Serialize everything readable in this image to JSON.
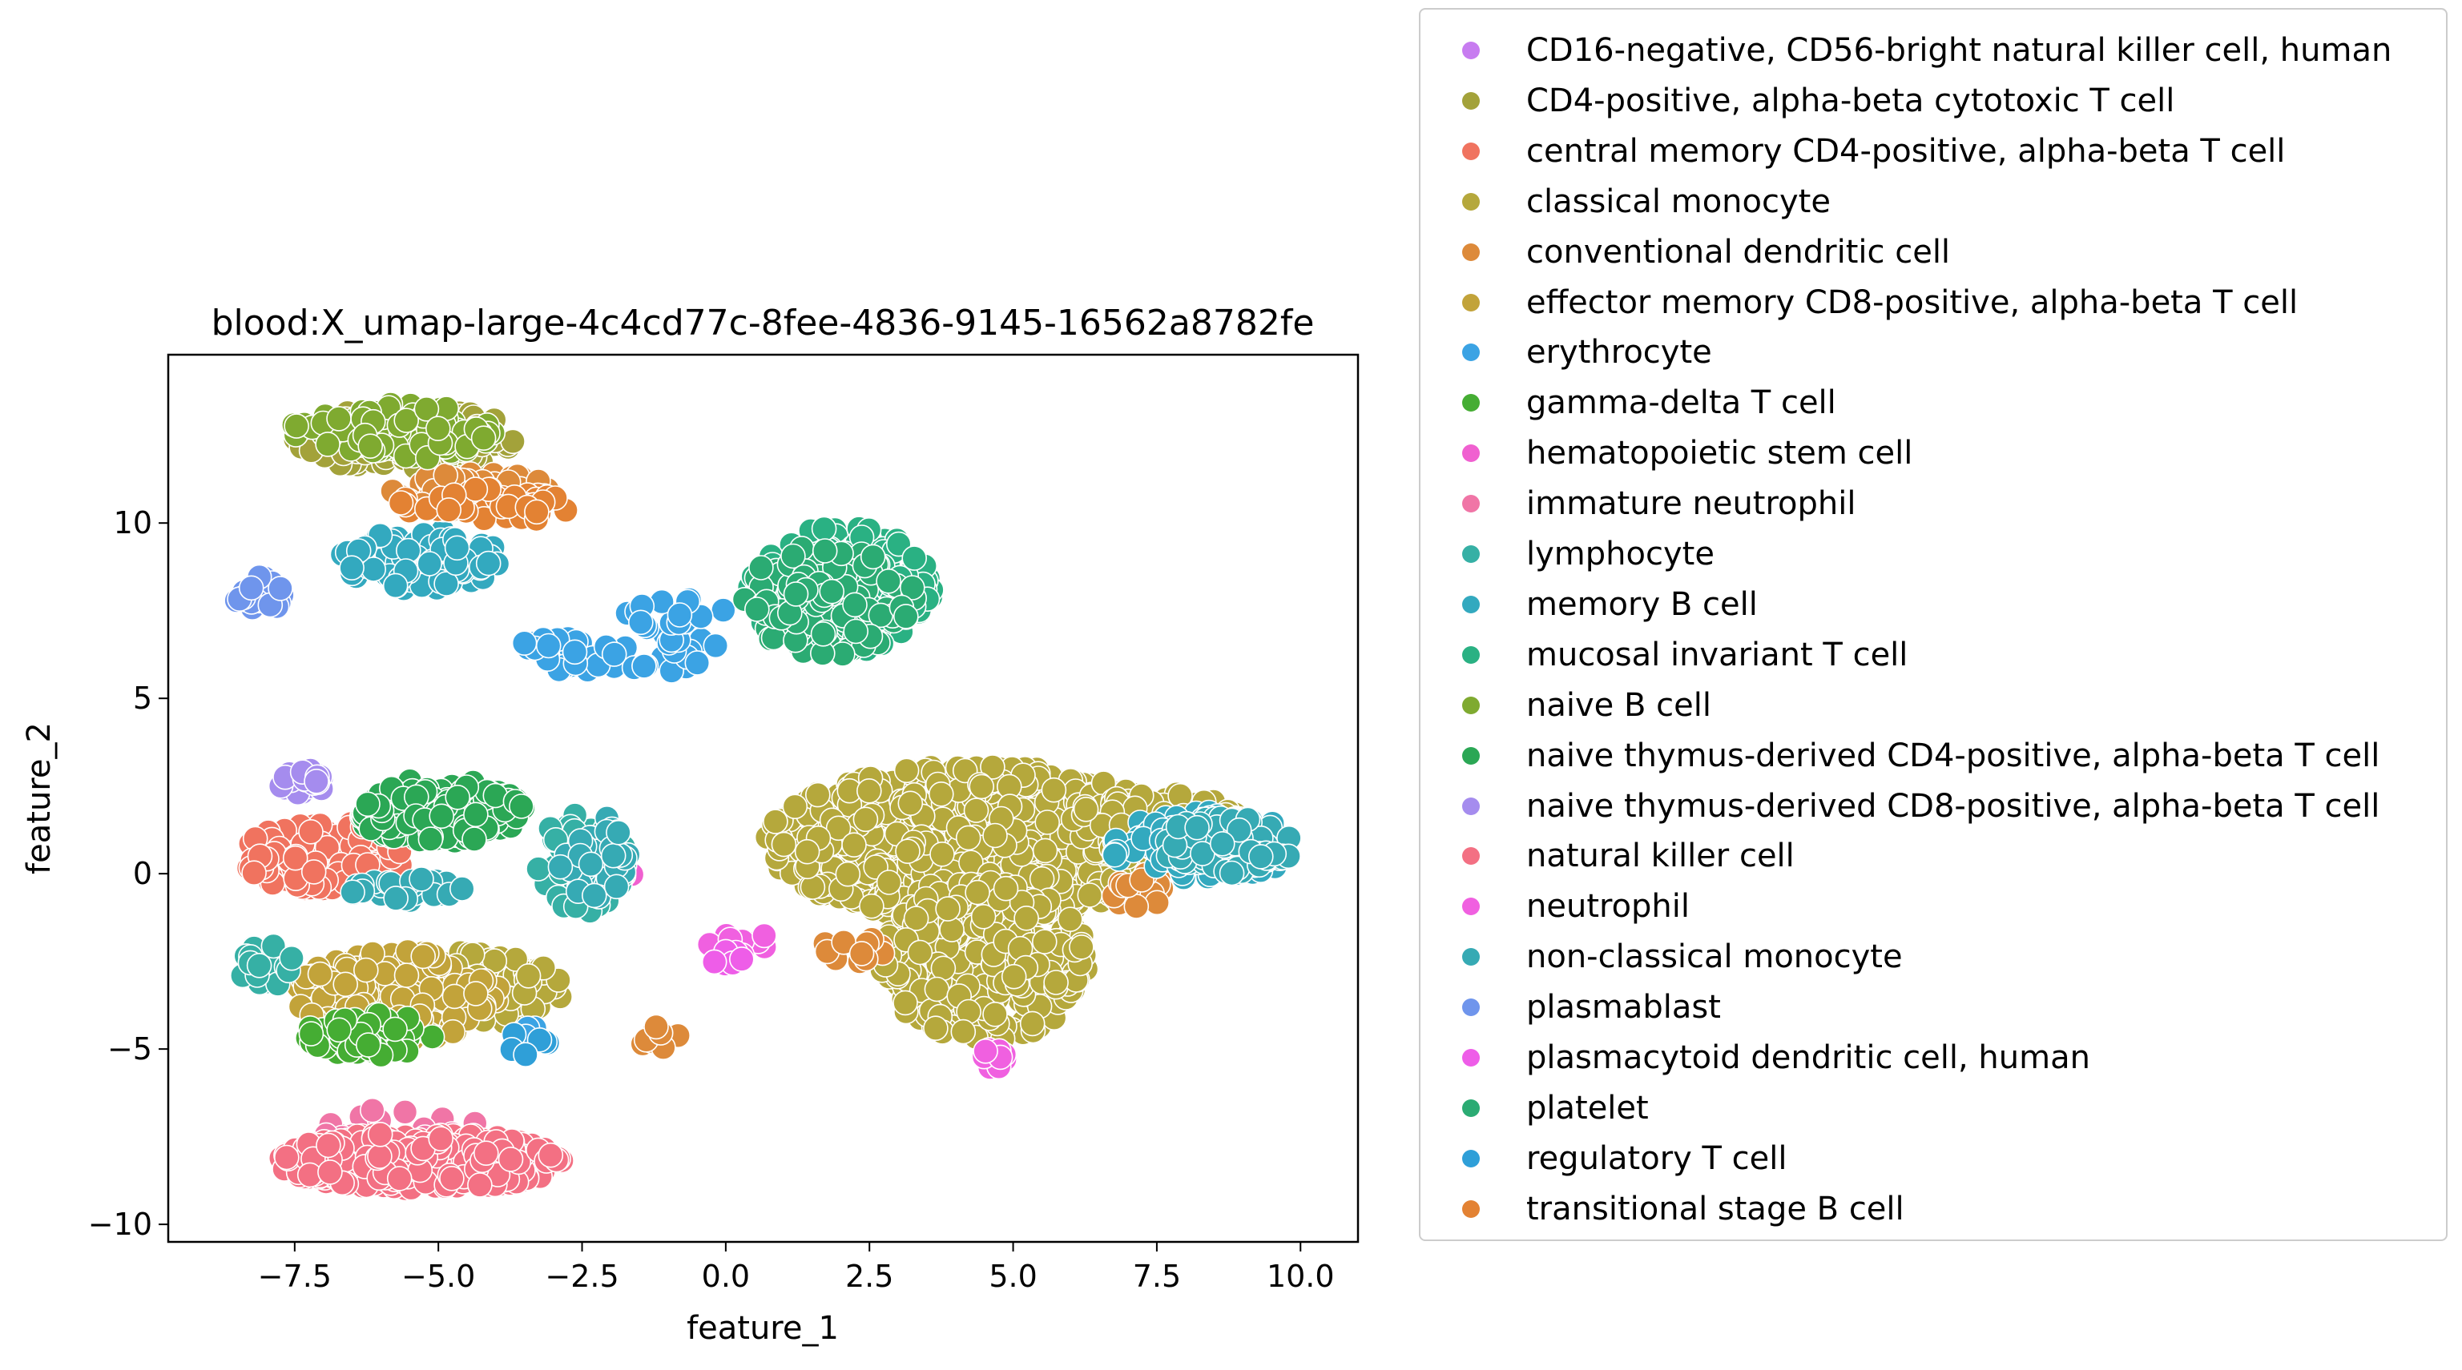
{
  "chart_data": {
    "type": "scatter",
    "title": "blood:X_umap-large-4c4cd77c-8fee-4836-9145-16562a8782fe",
    "xlabel": "feature_1",
    "ylabel": "feature_2",
    "xlim": [
      -9.7,
      11.0
    ],
    "ylim": [
      -10.5,
      14.8
    ],
    "xticks": [
      -7.5,
      -5.0,
      -2.5,
      0.0,
      2.5,
      5.0,
      7.5,
      10.0
    ],
    "xtick_labels": [
      "−7.5",
      "−5.0",
      "−2.5",
      "0.0",
      "2.5",
      "5.0",
      "7.5",
      "10.0"
    ],
    "yticks": [
      -10,
      -5,
      0,
      5,
      10
    ],
    "ytick_labels": [
      "−10",
      "−5",
      "0",
      "5",
      "10"
    ],
    "grid": false,
    "legend_position": "outside-right",
    "series": [
      {
        "name": "CD16-negative, CD56-bright natural killer cell, human",
        "color": "#c77cf0",
        "clusters": [
          {
            "cx": -6.3,
            "cy": -4.6,
            "rx": 0.5,
            "ry": 0.4,
            "n": 30
          }
        ]
      },
      {
        "name": "CD4-positive, alpha-beta cytotoxic T cell",
        "color": "#a3a23a",
        "clusters": [
          {
            "cx": -5.5,
            "cy": 12.4,
            "rx": 2.0,
            "ry": 0.9,
            "n": 140
          }
        ]
      },
      {
        "name": "central memory CD4-positive, alpha-beta T cell",
        "color": "#f0735f",
        "clusters": [
          {
            "cx": -7.0,
            "cy": 0.5,
            "rx": 1.4,
            "ry": 1.0,
            "n": 160
          }
        ]
      },
      {
        "name": "classical monocyte",
        "color": "#b5a83c",
        "clusters": [
          {
            "cx": 4.3,
            "cy": 0.9,
            "rx": 3.6,
            "ry": 2.2,
            "n": 700
          },
          {
            "cx": 4.5,
            "cy": -2.5,
            "rx": 1.8,
            "ry": 2.3,
            "n": 300
          },
          {
            "cx": 7.5,
            "cy": 1.3,
            "rx": 1.6,
            "ry": 1.0,
            "n": 120
          },
          {
            "cx": -4.8,
            "cy": -3.3,
            "rx": 2.0,
            "ry": 1.1,
            "n": 200
          }
        ]
      },
      {
        "name": "conventional dendritic cell",
        "color": "#dd8a3a",
        "clusters": [
          {
            "cx": -4.4,
            "cy": 10.9,
            "rx": 1.4,
            "ry": 0.6,
            "n": 60
          },
          {
            "cx": 2.2,
            "cy": -2.2,
            "rx": 0.6,
            "ry": 0.4,
            "n": 12
          },
          {
            "cx": 7.2,
            "cy": -0.5,
            "rx": 0.5,
            "ry": 0.5,
            "n": 14
          },
          {
            "cx": -1.2,
            "cy": -4.7,
            "rx": 0.6,
            "ry": 0.4,
            "n": 8
          }
        ]
      },
      {
        "name": "effector memory CD8-positive, alpha-beta T cell",
        "color": "#c2a33a",
        "clusters": [
          {
            "cx": -5.7,
            "cy": -3.5,
            "rx": 1.8,
            "ry": 1.3,
            "n": 150
          }
        ]
      },
      {
        "name": "erythrocyte",
        "color": "#3ba3e4",
        "clusters": [
          {
            "cx": -1.8,
            "cy": 6.3,
            "rx": 2.0,
            "ry": 0.6,
            "n": 45
          },
          {
            "cx": -0.9,
            "cy": 7.4,
            "rx": 1.0,
            "ry": 0.5,
            "n": 15
          },
          {
            "cx": -3.3,
            "cy": -4.6,
            "rx": 0.3,
            "ry": 0.3,
            "n": 4
          }
        ]
      },
      {
        "name": "gamma-delta T cell",
        "color": "#45ad33",
        "clusters": [
          {
            "cx": -6.2,
            "cy": -4.6,
            "rx": 1.1,
            "ry": 0.6,
            "n": 60
          }
        ]
      },
      {
        "name": "hematopoietic stem cell",
        "color": "#f060d0",
        "clusters": [
          {
            "cx": -2.0,
            "cy": 0.0,
            "rx": 0.5,
            "ry": 0.4,
            "n": 6
          }
        ]
      },
      {
        "name": "immature neutrophil",
        "color": "#f075a6",
        "clusters": [
          {
            "cx": -5.6,
            "cy": -7.6,
            "rx": 1.8,
            "ry": 0.9,
            "n": 40
          }
        ]
      },
      {
        "name": "lymphocyte",
        "color": "#36b0a5",
        "clusters": [
          {
            "cx": -2.5,
            "cy": 0.3,
            "rx": 0.8,
            "ry": 1.4,
            "n": 50
          },
          {
            "cx": -8.0,
            "cy": -2.6,
            "rx": 0.5,
            "ry": 0.6,
            "n": 25
          }
        ]
      },
      {
        "name": "memory B cell",
        "color": "#33a9bf",
        "clusters": [
          {
            "cx": -5.3,
            "cy": 9.0,
            "rx": 1.4,
            "ry": 0.9,
            "n": 110
          },
          {
            "cx": 8.3,
            "cy": 0.8,
            "rx": 1.6,
            "ry": 1.0,
            "n": 90
          }
        ]
      },
      {
        "name": "mucosal invariant T cell",
        "color": "#2ab183",
        "clusters": [
          {
            "cx": 2.0,
            "cy": 8.1,
            "rx": 1.6,
            "ry": 1.8,
            "n": 220
          }
        ]
      },
      {
        "name": "naive B cell",
        "color": "#7faa30",
        "clusters": [
          {
            "cx": -5.8,
            "cy": 12.6,
            "rx": 1.8,
            "ry": 0.8,
            "n": 120
          }
        ]
      },
      {
        "name": "naive thymus-derived CD4-positive, alpha-beta T cell",
        "color": "#2ba755",
        "clusters": [
          {
            "cx": -5.0,
            "cy": 1.8,
            "rx": 1.5,
            "ry": 0.9,
            "n": 150
          }
        ]
      },
      {
        "name": "naive thymus-derived CD8-positive, alpha-beta T cell",
        "color": "#a58cee",
        "clusters": [
          {
            "cx": -7.4,
            "cy": 2.6,
            "rx": 0.5,
            "ry": 0.4,
            "n": 25
          }
        ]
      },
      {
        "name": "natural killer cell",
        "color": "#f37083",
        "clusters": [
          {
            "cx": -5.3,
            "cy": -8.2,
            "rx": 2.5,
            "ry": 0.8,
            "n": 420
          }
        ]
      },
      {
        "name": "neutrophil",
        "color": "#f060e0",
        "clusters": [
          {
            "cx": 4.6,
            "cy": -5.3,
            "rx": 0.3,
            "ry": 0.3,
            "n": 14
          },
          {
            "cx": 0.2,
            "cy": -2.0,
            "rx": 0.6,
            "ry": 0.4,
            "n": 10
          }
        ]
      },
      {
        "name": "non-classical monocyte",
        "color": "#36aab4",
        "clusters": [
          {
            "cx": 8.7,
            "cy": 0.8,
            "rx": 1.2,
            "ry": 0.8,
            "n": 110
          },
          {
            "cx": -2.3,
            "cy": 0.5,
            "rx": 0.6,
            "ry": 1.2,
            "n": 40
          },
          {
            "cx": -5.5,
            "cy": -0.5,
            "rx": 1.0,
            "ry": 0.4,
            "n": 30
          }
        ]
      },
      {
        "name": "plasmablast",
        "color": "#6f95ec",
        "clusters": [
          {
            "cx": -8.1,
            "cy": 8.0,
            "rx": 0.5,
            "ry": 0.5,
            "n": 25
          }
        ]
      },
      {
        "name": "plasmacytoid dendritic cell, human",
        "color": "#ee5de8",
        "clusters": [
          {
            "cx": 0.0,
            "cy": -2.4,
            "rx": 0.3,
            "ry": 0.2,
            "n": 8
          }
        ]
      },
      {
        "name": "platelet",
        "color": "#2bab73",
        "clusters": [
          {
            "cx": 1.8,
            "cy": 7.8,
            "rx": 1.5,
            "ry": 1.6,
            "n": 120
          }
        ]
      },
      {
        "name": "regulatory T cell",
        "color": "#2f9fd8",
        "clusters": [
          {
            "cx": -3.6,
            "cy": -4.8,
            "rx": 0.5,
            "ry": 0.4,
            "n": 6
          }
        ]
      },
      {
        "name": "transitional stage B cell",
        "color": "#e38233",
        "clusters": [
          {
            "cx": -4.2,
            "cy": 10.5,
            "rx": 1.5,
            "ry": 0.5,
            "n": 50
          }
        ]
      }
    ]
  }
}
